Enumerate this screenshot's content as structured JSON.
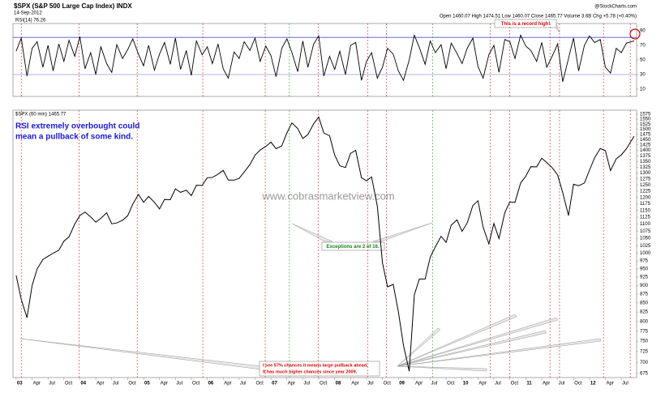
{
  "header": {
    "title": "$SPX (S&P 500 Large Cap Index) INDX",
    "date": "14-Sep-2012",
    "credit": "@StockCharts.com",
    "quote": "Open 1460.07  High 1474.51  Low 1460.07  Close 1465.77  Volume 3.6B  Chg +5.78 (+0.40%)"
  },
  "watermark": "www.cobrasmarketview.com",
  "notes": {
    "blue": [
      "RSI extremely overbought could",
      "mean a pullback of some kind."
    ],
    "record": "This is a record high!",
    "exceptions": "Exceptions are 2 of 16.",
    "chances": [
      "I see 57% chances it means large pullback ahead.",
      "It has much higher chances since year 2009."
    ]
  },
  "chart_data": [
    {
      "type": "line",
      "legend": "RSI(14) 76.26",
      "color": "#000000",
      "ylim": [
        0,
        100
      ],
      "yticks": [
        10,
        30,
        50,
        70,
        90
      ],
      "reference_lines": [
        {
          "value": 81,
          "color": "#3333cc"
        },
        {
          "value": 30,
          "color": "#9999cc"
        }
      ],
      "x": [
        2003,
        2003.08,
        2003.17,
        2003.25,
        2003.33,
        2003.42,
        2003.5,
        2003.58,
        2003.67,
        2003.75,
        2003.83,
        2003.92,
        2004,
        2004.08,
        2004.17,
        2004.25,
        2004.33,
        2004.42,
        2004.5,
        2004.58,
        2004.67,
        2004.75,
        2004.83,
        2004.92,
        2005,
        2005.08,
        2005.17,
        2005.25,
        2005.33,
        2005.42,
        2005.5,
        2005.58,
        2005.67,
        2005.75,
        2005.83,
        2005.92,
        2006,
        2006.08,
        2006.17,
        2006.25,
        2006.33,
        2006.42,
        2006.5,
        2006.58,
        2006.67,
        2006.75,
        2006.83,
        2006.92,
        2007,
        2007.08,
        2007.17,
        2007.25,
        2007.33,
        2007.42,
        2007.5,
        2007.58,
        2007.67,
        2007.75,
        2007.83,
        2007.92,
        2008,
        2008.08,
        2008.17,
        2008.25,
        2008.33,
        2008.42,
        2008.5,
        2008.58,
        2008.67,
        2008.75,
        2008.83,
        2008.92,
        2009,
        2009.08,
        2009.17,
        2009.25,
        2009.33,
        2009.42,
        2009.5,
        2009.58,
        2009.67,
        2009.75,
        2009.83,
        2009.92,
        2010,
        2010.08,
        2010.17,
        2010.25,
        2010.33,
        2010.42,
        2010.5,
        2010.58,
        2010.67,
        2010.75,
        2010.83,
        2010.92,
        2011,
        2011.08,
        2011.17,
        2011.25,
        2011.33,
        2011.42,
        2011.5,
        2011.58,
        2011.67,
        2011.75,
        2011.83,
        2011.92,
        2012,
        2012.08,
        2012.17,
        2012.25,
        2012.33,
        2012.42,
        2012.5,
        2012.58,
        2012.7
      ],
      "values": [
        62,
        80,
        28,
        66,
        75,
        40,
        70,
        35,
        72,
        48,
        77,
        55,
        82,
        38,
        60,
        30,
        68,
        45,
        33,
        71,
        52,
        64,
        79,
        58,
        42,
        70,
        36,
        58,
        74,
        44,
        80,
        37,
        63,
        29,
        76,
        57,
        68,
        45,
        72,
        38,
        25,
        61,
        52,
        75,
        63,
        80,
        48,
        69,
        56,
        27,
        66,
        79,
        60,
        34,
        76,
        40,
        72,
        83,
        28,
        55,
        37,
        62,
        30,
        70,
        74,
        22,
        48,
        60,
        25,
        40,
        66,
        58,
        35,
        22,
        50,
        84,
        67,
        44,
        76,
        60,
        71,
        38,
        73,
        59,
        45,
        66,
        80,
        41,
        25,
        57,
        70,
        33,
        78,
        75,
        52,
        84,
        69,
        63,
        48,
        74,
        40,
        56,
        72,
        20,
        52,
        80,
        35,
        70,
        83,
        74,
        78,
        40,
        32,
        66,
        60,
        73,
        76.26
      ]
    },
    {
      "type": "line",
      "legend": "$SPX (60 min) 1465.77",
      "color": "#000000",
      "log": true,
      "ylim": [
        666,
        1596
      ],
      "yticks": [
        675,
        700,
        725,
        750,
        775,
        800,
        825,
        850,
        875,
        900,
        925,
        950,
        975,
        1000,
        1025,
        1050,
        1075,
        1100,
        1125,
        1150,
        1175,
        1200,
        1225,
        1250,
        1275,
        1300,
        1325,
        1350,
        1375,
        1400,
        1425,
        1450,
        1475,
        1500,
        1525,
        1550,
        1575
      ],
      "xlim": [
        2002.95,
        2012.74
      ],
      "xticks": [
        {
          "value": 2003,
          "label": "03"
        },
        {
          "value": 2003.25,
          "label": "Apr"
        },
        {
          "value": 2003.5,
          "label": "Jul"
        },
        {
          "value": 2003.75,
          "label": "Oct"
        },
        {
          "value": 2004,
          "label": "04"
        },
        {
          "value": 2004.25,
          "label": "Apr"
        },
        {
          "value": 2004.5,
          "label": "Jul"
        },
        {
          "value": 2004.75,
          "label": "Oct"
        },
        {
          "value": 2005,
          "label": "05"
        },
        {
          "value": 2005.25,
          "label": "Apr"
        },
        {
          "value": 2005.5,
          "label": "Jul"
        },
        {
          "value": 2005.75,
          "label": "Oct"
        },
        {
          "value": 2006,
          "label": "06"
        },
        {
          "value": 2006.25,
          "label": "Apr"
        },
        {
          "value": 2006.5,
          "label": "Jul"
        },
        {
          "value": 2006.75,
          "label": "Oct"
        },
        {
          "value": 2007,
          "label": "07"
        },
        {
          "value": 2007.25,
          "label": "Apr"
        },
        {
          "value": 2007.5,
          "label": "Jul"
        },
        {
          "value": 2007.75,
          "label": "Oct"
        },
        {
          "value": 2008,
          "label": "08"
        },
        {
          "value": 2008.25,
          "label": "Apr"
        },
        {
          "value": 2008.5,
          "label": "Jul"
        },
        {
          "value": 2008.75,
          "label": "Oct"
        },
        {
          "value": 2009,
          "label": "09"
        },
        {
          "value": 2009.25,
          "label": "Apr"
        },
        {
          "value": 2009.5,
          "label": "Jul"
        },
        {
          "value": 2009.75,
          "label": "Oct"
        },
        {
          "value": 2010,
          "label": "10"
        },
        {
          "value": 2010.25,
          "label": "Apr"
        },
        {
          "value": 2010.5,
          "label": "Jul"
        },
        {
          "value": 2010.75,
          "label": "Oct"
        },
        {
          "value": 2011,
          "label": "11"
        },
        {
          "value": 2011.25,
          "label": "Apr"
        },
        {
          "value": 2011.5,
          "label": "Jul"
        },
        {
          "value": 2011.75,
          "label": "Oct"
        },
        {
          "value": 2012,
          "label": "12"
        },
        {
          "value": 2012.25,
          "label": "Apr"
        },
        {
          "value": 2012.5,
          "label": "Jul"
        }
      ],
      "vlines": [
        {
          "x": 2003.08,
          "color": "#dd2222"
        },
        {
          "x": 2003.99,
          "color": "#dd2222"
        },
        {
          "x": 2004.9,
          "color": "#dd2222"
        },
        {
          "x": 2005.93,
          "color": "#dd2222"
        },
        {
          "x": 2006.91,
          "color": "#dd2222"
        },
        {
          "x": 2007.29,
          "color": "#22aa22"
        },
        {
          "x": 2007.74,
          "color": "#dd2222"
        },
        {
          "x": 2008.52,
          "color": "#dd2222"
        },
        {
          "x": 2008.81,
          "color": "#dd2222"
        },
        {
          "x": 2009.54,
          "color": "#22aa22"
        },
        {
          "x": 2010.44,
          "color": "#dd2222"
        },
        {
          "x": 2010.75,
          "color": "#dd2222"
        },
        {
          "x": 2011.38,
          "color": "#dd2222"
        },
        {
          "x": 2011.53,
          "color": "#dd2222"
        },
        {
          "x": 2012.22,
          "color": "#dd2222"
        },
        {
          "x": 2012.64,
          "color": "#dd2222"
        }
      ],
      "x": [
        2003,
        2003.08,
        2003.17,
        2003.25,
        2003.33,
        2003.42,
        2003.5,
        2003.58,
        2003.67,
        2003.75,
        2003.83,
        2003.92,
        2004,
        2004.08,
        2004.17,
        2004.25,
        2004.33,
        2004.42,
        2004.5,
        2004.58,
        2004.67,
        2004.75,
        2004.83,
        2004.92,
        2005,
        2005.08,
        2005.17,
        2005.25,
        2005.33,
        2005.42,
        2005.5,
        2005.58,
        2005.67,
        2005.75,
        2005.83,
        2005.92,
        2006,
        2006.08,
        2006.17,
        2006.25,
        2006.33,
        2006.42,
        2006.5,
        2006.58,
        2006.67,
        2006.75,
        2006.83,
        2006.92,
        2007,
        2007.08,
        2007.17,
        2007.25,
        2007.33,
        2007.42,
        2007.5,
        2007.58,
        2007.67,
        2007.75,
        2007.83,
        2007.92,
        2008,
        2008.08,
        2008.17,
        2008.25,
        2008.33,
        2008.42,
        2008.5,
        2008.58,
        2008.67,
        2008.75,
        2008.83,
        2008.92,
        2009,
        2009.08,
        2009.17,
        2009.25,
        2009.33,
        2009.42,
        2009.5,
        2009.58,
        2009.67,
        2009.75,
        2009.83,
        2009.92,
        2010,
        2010.08,
        2010.17,
        2010.25,
        2010.33,
        2010.42,
        2010.5,
        2010.58,
        2010.67,
        2010.75,
        2010.83,
        2010.92,
        2011,
        2011.08,
        2011.17,
        2011.25,
        2011.33,
        2011.42,
        2011.5,
        2011.58,
        2011.67,
        2011.75,
        2011.83,
        2011.92,
        2012,
        2012.08,
        2012.17,
        2012.25,
        2012.33,
        2012.42,
        2012.5,
        2012.58,
        2012.7
      ],
      "values": [
        930,
        860,
        810,
        900,
        950,
        980,
        990,
        1000,
        1010,
        1040,
        1055,
        1100,
        1131,
        1144,
        1126,
        1107,
        1121,
        1141,
        1101,
        1104,
        1114,
        1130,
        1174,
        1212,
        1181,
        1204,
        1181,
        1156,
        1192,
        1191,
        1234,
        1220,
        1229,
        1207,
        1249,
        1248,
        1280,
        1281,
        1295,
        1311,
        1270,
        1270,
        1277,
        1304,
        1336,
        1378,
        1401,
        1418,
        1438,
        1407,
        1421,
        1482,
        1531,
        1503,
        1455,
        1474,
        1527,
        1560,
        1481,
        1468,
        1378,
        1331,
        1323,
        1386,
        1400,
        1280,
        1267,
        1283,
        1166,
        969,
        896,
        903,
        826,
        740,
        680,
        873,
        919,
        919,
        987,
        1021,
        1057,
        1036,
        1096,
        1115,
        1074,
        1104,
        1169,
        1187,
        1089,
        1031,
        1102,
        1049,
        1141,
        1183,
        1181,
        1258,
        1286,
        1327,
        1326,
        1364,
        1345,
        1321,
        1292,
        1219,
        1131,
        1253,
        1247,
        1258,
        1312,
        1366,
        1408,
        1398,
        1310,
        1362,
        1379,
        1407,
        1465.77
      ]
    }
  ]
}
